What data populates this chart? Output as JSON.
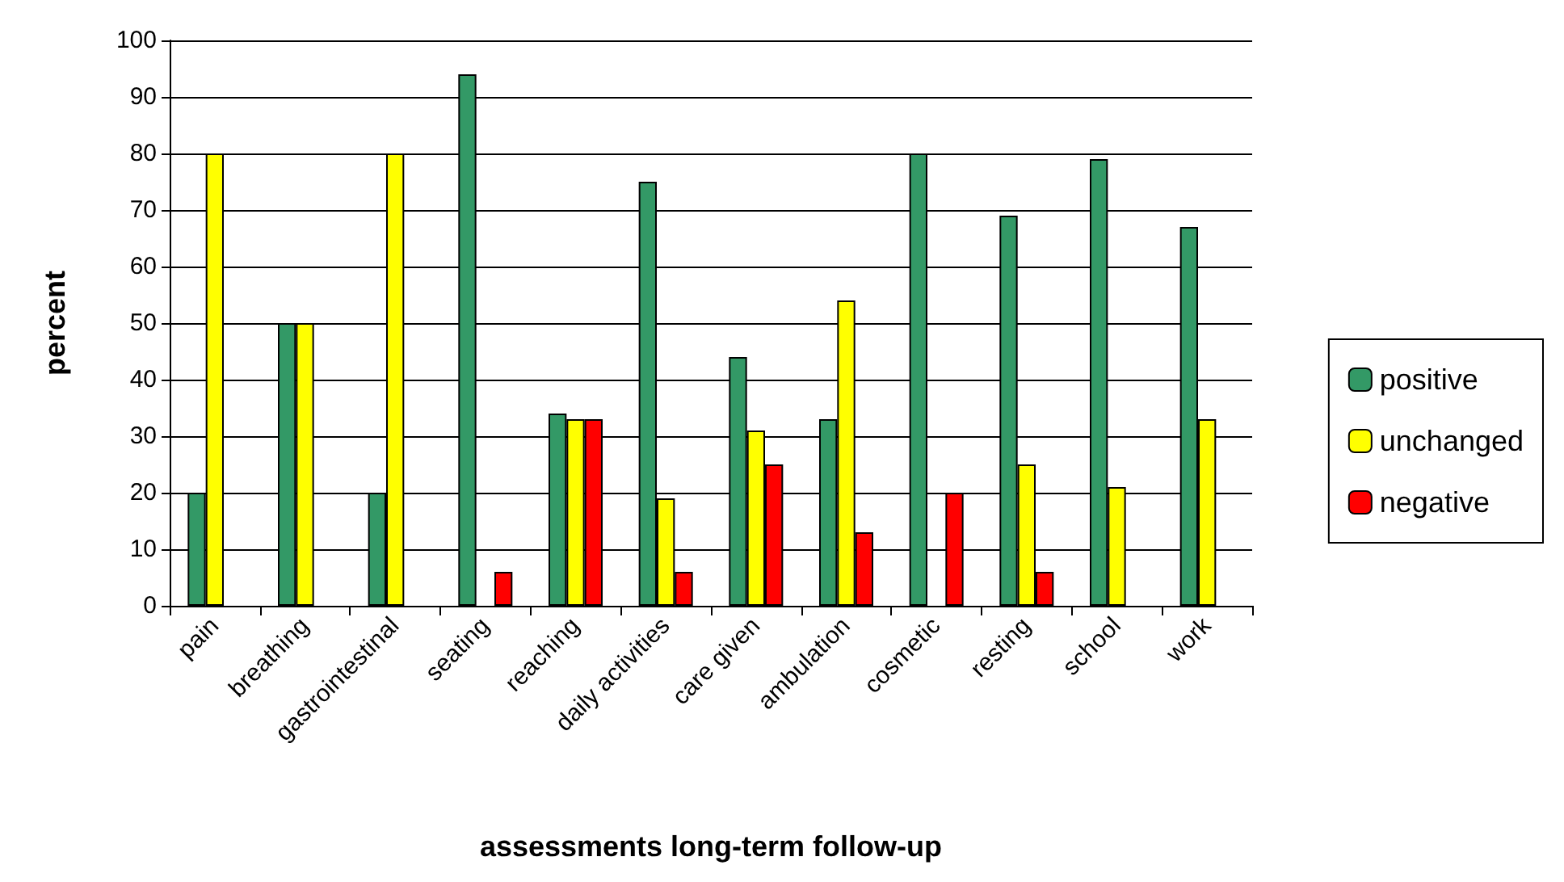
{
  "chart_data": {
    "type": "bar",
    "xlabel": "assessments long-term follow-up",
    "ylabel": "percent",
    "categories": [
      "pain",
      "breathing",
      "gastrointestinal",
      "seating",
      "reaching",
      "daily activities",
      "care given",
      "ambulation",
      "cosmetic",
      "resting",
      "school",
      "work"
    ],
    "series": [
      {
        "name": "positive",
        "color": "#339966",
        "values": [
          20,
          50,
          20,
          94,
          34,
          75,
          44,
          33,
          80,
          69,
          79,
          67
        ]
      },
      {
        "name": "unchanged",
        "color": "#ffff00",
        "values": [
          80,
          50,
          80,
          null,
          33,
          19,
          31,
          54,
          null,
          25,
          21,
          33
        ]
      },
      {
        "name": "negative",
        "color": "#ff0000",
        "values": [
          null,
          null,
          null,
          6,
          33,
          6,
          25,
          13,
          20,
          6,
          null,
          null
        ]
      }
    ],
    "ylim": [
      0,
      100
    ],
    "yticks": [
      0,
      10,
      20,
      30,
      40,
      50,
      60,
      70,
      80,
      90,
      100
    ],
    "grid": "y",
    "legend": "right"
  }
}
